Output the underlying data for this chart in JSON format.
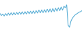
{
  "values": [
    180,
    160,
    175,
    155,
    180,
    160,
    185,
    162,
    188,
    165,
    190,
    168,
    192,
    170,
    195,
    172,
    198,
    174,
    200,
    176,
    202,
    178,
    205,
    180,
    208,
    182,
    210,
    185,
    215,
    188,
    218,
    190,
    220,
    192,
    225,
    194,
    228,
    196,
    232,
    200,
    235,
    205,
    240,
    210,
    248,
    215,
    255,
    240,
    270,
    60,
    40,
    100,
    130,
    150,
    165,
    175,
    185,
    195,
    200,
    210
  ],
  "line_color": "#5bafd6",
  "fill_color": "#5bafd6",
  "fill_alpha": 0.3,
  "background_color": "#ffffff",
  "linewidth": 0.8,
  "ylim_min": 0,
  "ylim_max": 320
}
